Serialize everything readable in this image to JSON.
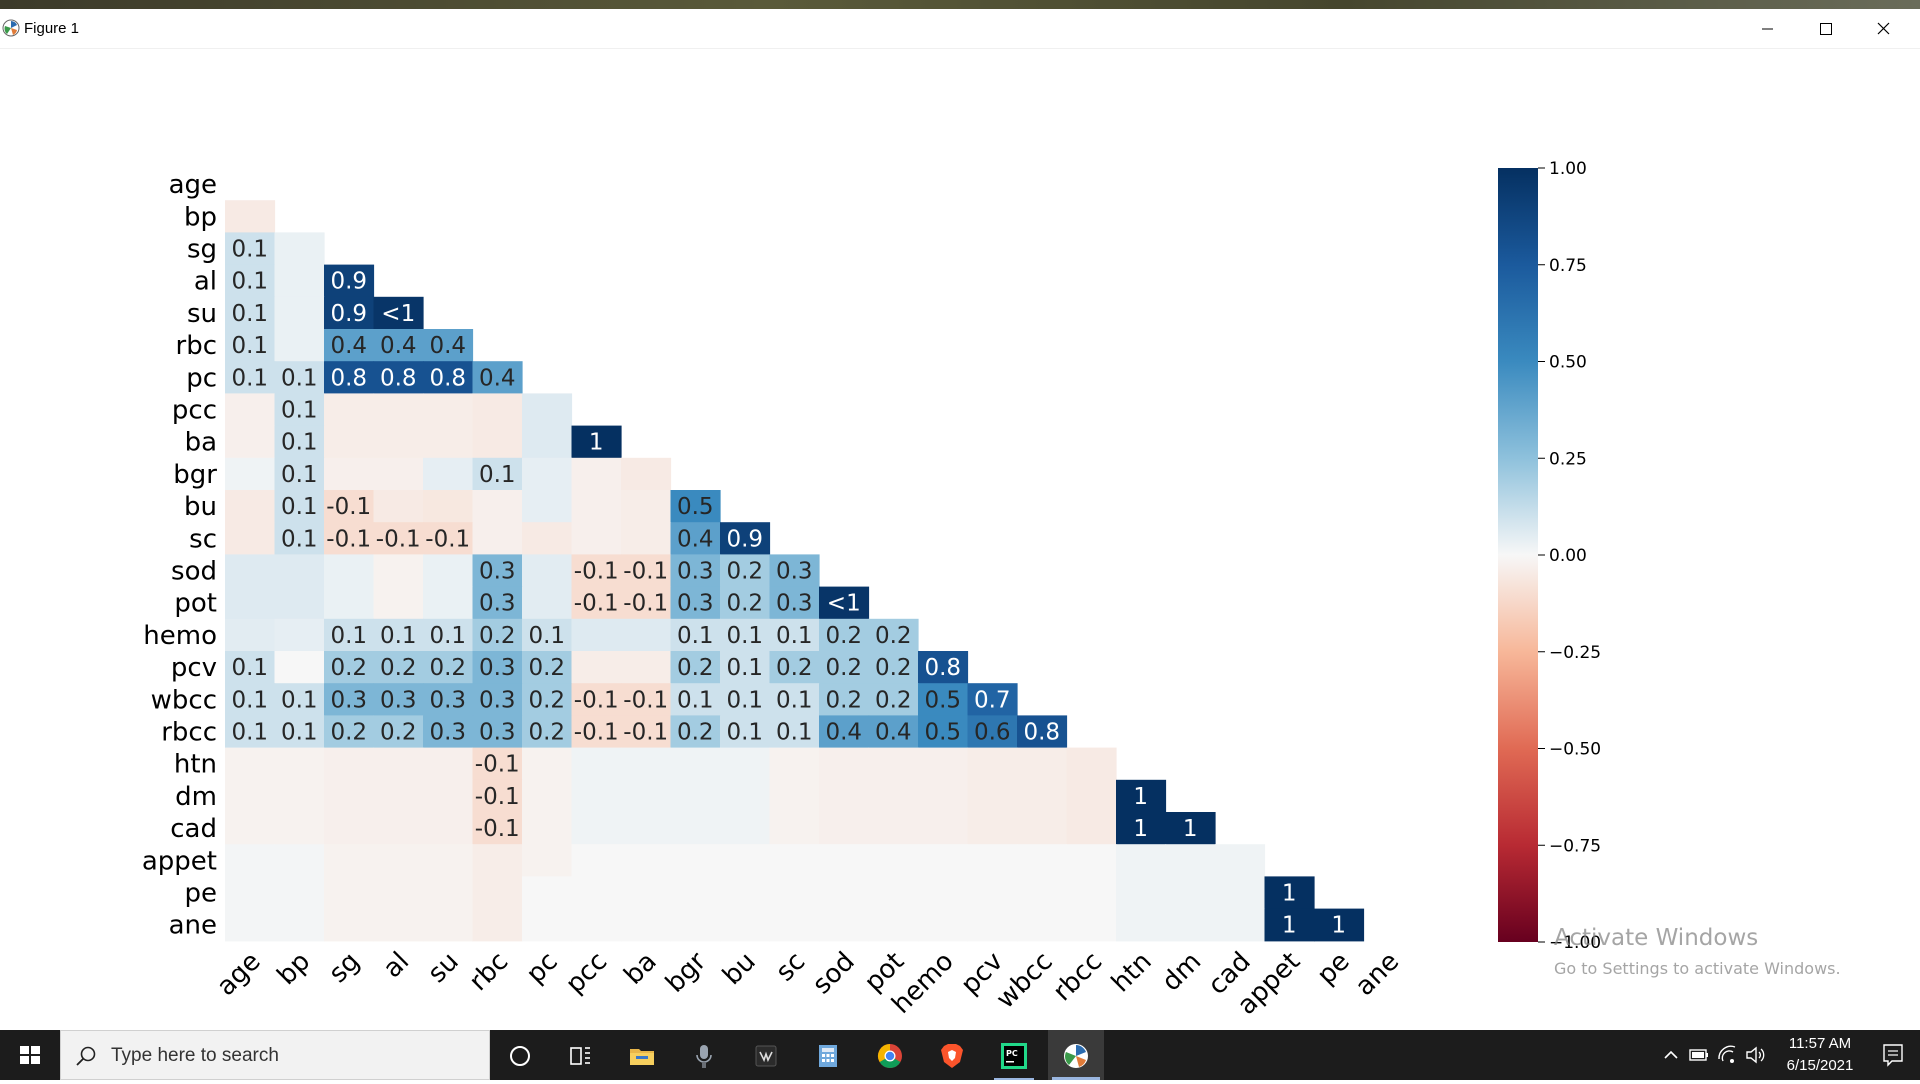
{
  "window": {
    "title": "Figure 1"
  },
  "watermark": {
    "line1": "Activate Windows",
    "line2": "Go to Settings to activate Windows."
  },
  "taskbar": {
    "search_placeholder": "Type here to search",
    "apps": [
      "cortana-icon",
      "task-view-icon",
      "file-explorer-icon",
      "microphone-app-icon",
      "terminal-app-icon",
      "calculator-icon",
      "chrome-icon",
      "brave-icon",
      "pycharm-icon",
      "matplotlib-figure-icon"
    ],
    "clock_time": "11:57 AM",
    "clock_date": "6/15/2021"
  },
  "chart_data": {
    "type": "heatmap",
    "title": "",
    "labels": [
      "age",
      "bp",
      "sg",
      "al",
      "su",
      "rbc",
      "pc",
      "pcc",
      "ba",
      "bgr",
      "bu",
      "sc",
      "sod",
      "pot",
      "hemo",
      "pcv",
      "wbcc",
      "rbcc",
      "htn",
      "dm",
      "cad",
      "appet",
      "pe",
      "ane"
    ],
    "annotations": [
      [
        "sg",
        "age",
        "0.1"
      ],
      [
        "al",
        "age",
        "0.1"
      ],
      [
        "al",
        "sg",
        "0.9"
      ],
      [
        "su",
        "age",
        "0.1"
      ],
      [
        "su",
        "sg",
        "0.9"
      ],
      [
        "su",
        "al",
        "<1"
      ],
      [
        "rbc",
        "age",
        "0.1"
      ],
      [
        "rbc",
        "sg",
        "0.4"
      ],
      [
        "rbc",
        "al",
        "0.4"
      ],
      [
        "rbc",
        "su",
        "0.4"
      ],
      [
        "pc",
        "age",
        "0.1"
      ],
      [
        "pc",
        "bp",
        "0.1"
      ],
      [
        "pc",
        "sg",
        "0.8"
      ],
      [
        "pc",
        "al",
        "0.8"
      ],
      [
        "pc",
        "su",
        "0.8"
      ],
      [
        "pc",
        "rbc",
        "0.4"
      ],
      [
        "pcc",
        "bp",
        "0.1"
      ],
      [
        "ba",
        "bp",
        "0.1"
      ],
      [
        "ba",
        "pcc",
        "1"
      ],
      [
        "bgr",
        "bp",
        "0.1"
      ],
      [
        "bgr",
        "rbc",
        "0.1"
      ],
      [
        "bu",
        "bp",
        "0.1"
      ],
      [
        "bu",
        "sg",
        "-0.1"
      ],
      [
        "bu",
        "bgr",
        "0.5"
      ],
      [
        "sc",
        "bp",
        "0.1"
      ],
      [
        "sc",
        "sg",
        "-0.1"
      ],
      [
        "sc",
        "al",
        "-0.1"
      ],
      [
        "sc",
        "su",
        "-0.1"
      ],
      [
        "sc",
        "bgr",
        "0.4"
      ],
      [
        "sc",
        "bu",
        "0.9"
      ],
      [
        "sod",
        "rbc",
        "0.3"
      ],
      [
        "sod",
        "pcc",
        "-0.1"
      ],
      [
        "sod",
        "ba",
        "-0.1"
      ],
      [
        "sod",
        "bgr",
        "0.3"
      ],
      [
        "sod",
        "bu",
        "0.2"
      ],
      [
        "sod",
        "sc",
        "0.3"
      ],
      [
        "pot",
        "rbc",
        "0.3"
      ],
      [
        "pot",
        "pcc",
        "-0.1"
      ],
      [
        "pot",
        "ba",
        "-0.1"
      ],
      [
        "pot",
        "bgr",
        "0.3"
      ],
      [
        "pot",
        "bu",
        "0.2"
      ],
      [
        "pot",
        "sc",
        "0.3"
      ],
      [
        "pot",
        "sod",
        "<1"
      ],
      [
        "hemo",
        "sg",
        "0.1"
      ],
      [
        "hemo",
        "al",
        "0.1"
      ],
      [
        "hemo",
        "su",
        "0.1"
      ],
      [
        "hemo",
        "rbc",
        "0.2"
      ],
      [
        "hemo",
        "pc",
        "0.1"
      ],
      [
        "hemo",
        "bgr",
        "0.1"
      ],
      [
        "hemo",
        "bu",
        "0.1"
      ],
      [
        "hemo",
        "sc",
        "0.1"
      ],
      [
        "hemo",
        "sod",
        "0.2"
      ],
      [
        "hemo",
        "pot",
        "0.2"
      ],
      [
        "pcv",
        "age",
        "0.1"
      ],
      [
        "pcv",
        "sg",
        "0.2"
      ],
      [
        "pcv",
        "al",
        "0.2"
      ],
      [
        "pcv",
        "su",
        "0.2"
      ],
      [
        "pcv",
        "rbc",
        "0.3"
      ],
      [
        "pcv",
        "pc",
        "0.2"
      ],
      [
        "pcv",
        "bgr",
        "0.2"
      ],
      [
        "pcv",
        "bu",
        "0.1"
      ],
      [
        "pcv",
        "sc",
        "0.2"
      ],
      [
        "pcv",
        "sod",
        "0.2"
      ],
      [
        "pcv",
        "pot",
        "0.2"
      ],
      [
        "pcv",
        "hemo",
        "0.8"
      ],
      [
        "wbcc",
        "age",
        "0.1"
      ],
      [
        "wbcc",
        "bp",
        "0.1"
      ],
      [
        "wbcc",
        "sg",
        "0.3"
      ],
      [
        "wbcc",
        "al",
        "0.3"
      ],
      [
        "wbcc",
        "su",
        "0.3"
      ],
      [
        "wbcc",
        "rbc",
        "0.3"
      ],
      [
        "wbcc",
        "pc",
        "0.2"
      ],
      [
        "wbcc",
        "pcc",
        "-0.1"
      ],
      [
        "wbcc",
        "ba",
        "-0.1"
      ],
      [
        "wbcc",
        "bgr",
        "0.1"
      ],
      [
        "wbcc",
        "bu",
        "0.1"
      ],
      [
        "wbcc",
        "sc",
        "0.1"
      ],
      [
        "wbcc",
        "sod",
        "0.2"
      ],
      [
        "wbcc",
        "pot",
        "0.2"
      ],
      [
        "wbcc",
        "hemo",
        "0.5"
      ],
      [
        "wbcc",
        "pcv",
        "0.7"
      ],
      [
        "rbcc",
        "age",
        "0.1"
      ],
      [
        "rbcc",
        "bp",
        "0.1"
      ],
      [
        "rbcc",
        "sg",
        "0.2"
      ],
      [
        "rbcc",
        "al",
        "0.2"
      ],
      [
        "rbcc",
        "su",
        "0.3"
      ],
      [
        "rbcc",
        "rbc",
        "0.3"
      ],
      [
        "rbcc",
        "pc",
        "0.2"
      ],
      [
        "rbcc",
        "pcc",
        "-0.1"
      ],
      [
        "rbcc",
        "ba",
        "-0.1"
      ],
      [
        "rbcc",
        "bgr",
        "0.2"
      ],
      [
        "rbcc",
        "bu",
        "0.1"
      ],
      [
        "rbcc",
        "sc",
        "0.1"
      ],
      [
        "rbcc",
        "sod",
        "0.4"
      ],
      [
        "rbcc",
        "pot",
        "0.4"
      ],
      [
        "rbcc",
        "hemo",
        "0.5"
      ],
      [
        "rbcc",
        "pcv",
        "0.6"
      ],
      [
        "rbcc",
        "wbcc",
        "0.8"
      ],
      [
        "htn",
        "rbc",
        "-0.1"
      ],
      [
        "dm",
        "rbc",
        "-0.1"
      ],
      [
        "dm",
        "htn",
        "1"
      ],
      [
        "cad",
        "rbc",
        "-0.1"
      ],
      [
        "cad",
        "htn",
        "1"
      ],
      [
        "cad",
        "dm",
        "1"
      ],
      [
        "pe",
        "appet",
        "1"
      ],
      [
        "ane",
        "appet",
        "1"
      ],
      [
        "ane",
        "pe",
        "1"
      ]
    ],
    "background_cells": [
      [
        "bp",
        "age",
        -0.05
      ],
      [
        "pcc",
        "age",
        -0.03
      ],
      [
        "ba",
        "age",
        -0.03
      ],
      [
        "bgr",
        "age",
        0.02
      ],
      [
        "bu",
        "age",
        -0.05
      ],
      [
        "sc",
        "age",
        -0.05
      ],
      [
        "sod",
        "age",
        0.06
      ],
      [
        "pot",
        "age",
        0.06
      ],
      [
        "hemo",
        "age",
        0.05
      ],
      [
        "htn",
        "age",
        -0.02
      ],
      [
        "dm",
        "age",
        -0.02
      ],
      [
        "cad",
        "age",
        -0.02
      ],
      [
        "appet",
        "age",
        0.01
      ],
      [
        "pe",
        "age",
        0.01
      ],
      [
        "ane",
        "age",
        0.01
      ],
      [
        "sg",
        "bp",
        0.03
      ],
      [
        "al",
        "bp",
        0.03
      ],
      [
        "su",
        "bp",
        0.03
      ],
      [
        "rbc",
        "bp",
        0.03
      ],
      [
        "sod",
        "bp",
        0.06
      ],
      [
        "pot",
        "bp",
        0.06
      ],
      [
        "hemo",
        "bp",
        0.04
      ],
      [
        "htn",
        "bp",
        -0.02
      ],
      [
        "dm",
        "bp",
        -0.02
      ],
      [
        "cad",
        "bp",
        -0.02
      ],
      [
        "appet",
        "bp",
        0.01
      ],
      [
        "pe",
        "bp",
        0.01
      ],
      [
        "ane",
        "bp",
        0.01
      ],
      [
        "pcc",
        "sg",
        -0.04
      ],
      [
        "ba",
        "sg",
        -0.04
      ],
      [
        "bgr",
        "sg",
        -0.03
      ],
      [
        "sod",
        "sg",
        0.03
      ],
      [
        "pot",
        "sg",
        0.03
      ],
      [
        "pcc",
        "al",
        -0.04
      ],
      [
        "ba",
        "al",
        -0.04
      ],
      [
        "bgr",
        "al",
        -0.03
      ],
      [
        "bu",
        "al",
        -0.05
      ],
      [
        "sod",
        "al",
        -0.02
      ],
      [
        "pot",
        "al",
        -0.02
      ],
      [
        "pcc",
        "su",
        -0.04
      ],
      [
        "ba",
        "su",
        -0.04
      ],
      [
        "bgr",
        "su",
        0.04
      ],
      [
        "bu",
        "su",
        -0.06
      ],
      [
        "sod",
        "su",
        0.03
      ],
      [
        "pot",
        "su",
        0.03
      ],
      [
        "pcc",
        "rbc",
        -0.05
      ],
      [
        "ba",
        "rbc",
        -0.05
      ],
      [
        "bu",
        "rbc",
        -0.03
      ],
      [
        "sc",
        "rbc",
        -0.03
      ],
      [
        "pcc",
        "pc",
        0.06
      ],
      [
        "ba",
        "pc",
        0.06
      ],
      [
        "bgr",
        "pc",
        0.04
      ],
      [
        "bu",
        "pc",
        0.04
      ],
      [
        "sc",
        "pc",
        -0.05
      ],
      [
        "sod",
        "pc",
        0.05
      ],
      [
        "pot",
        "pc",
        0.05
      ],
      [
        "bgr",
        "pcc",
        -0.03
      ],
      [
        "bu",
        "pcc",
        -0.03
      ],
      [
        "sc",
        "pcc",
        -0.03
      ],
      [
        "hemo",
        "pcc",
        0.06
      ],
      [
        "pcv",
        "pcc",
        -0.04
      ],
      [
        "bgr",
        "ba",
        -0.05
      ],
      [
        "bu",
        "ba",
        -0.04
      ],
      [
        "sc",
        "ba",
        -0.04
      ],
      [
        "hemo",
        "ba",
        0.06
      ],
      [
        "pcv",
        "ba",
        -0.04
      ],
      [
        "htn",
        "bgr",
        0.02
      ],
      [
        "dm",
        "bgr",
        0.02
      ],
      [
        "cad",
        "bgr",
        0.02
      ],
      [
        "htn",
        "bu",
        0.02
      ],
      [
        "dm",
        "bu",
        0.02
      ],
      [
        "cad",
        "bu",
        0.02
      ],
      [
        "rbcc",
        "rbcc",
        0.0
      ],
      [
        "htn",
        "sg",
        -0.03
      ],
      [
        "dm",
        "sg",
        -0.03
      ],
      [
        "cad",
        "sg",
        -0.03
      ],
      [
        "htn",
        "al",
        -0.03
      ],
      [
        "dm",
        "al",
        -0.03
      ],
      [
        "cad",
        "al",
        -0.03
      ],
      [
        "htn",
        "su",
        -0.03
      ],
      [
        "dm",
        "su",
        -0.03
      ],
      [
        "cad",
        "su",
        -0.03
      ],
      [
        "htn",
        "pc",
        -0.02
      ],
      [
        "dm",
        "pc",
        -0.02
      ],
      [
        "cad",
        "pc",
        -0.02
      ],
      [
        "htn",
        "pcc",
        0.02
      ],
      [
        "dm",
        "pcc",
        0.02
      ],
      [
        "cad",
        "pcc",
        0.02
      ],
      [
        "htn",
        "ba",
        0.02
      ],
      [
        "dm",
        "ba",
        0.02
      ],
      [
        "cad",
        "ba",
        0.02
      ],
      [
        "htn",
        "sc",
        -0.02
      ],
      [
        "dm",
        "sc",
        -0.02
      ],
      [
        "cad",
        "sc",
        -0.02
      ],
      [
        "htn",
        "sod",
        -0.03
      ],
      [
        "dm",
        "sod",
        -0.03
      ],
      [
        "cad",
        "sod",
        -0.03
      ],
      [
        "htn",
        "pot",
        -0.03
      ],
      [
        "dm",
        "pot",
        -0.03
      ],
      [
        "cad",
        "pot",
        -0.03
      ],
      [
        "htn",
        "hemo",
        -0.03
      ],
      [
        "dm",
        "hemo",
        -0.03
      ],
      [
        "cad",
        "hemo",
        -0.03
      ],
      [
        "htn",
        "pcv",
        -0.04
      ],
      [
        "dm",
        "pcv",
        -0.04
      ],
      [
        "cad",
        "pcv",
        -0.04
      ],
      [
        "htn",
        "wbcc",
        -0.04
      ],
      [
        "dm",
        "wbcc",
        -0.04
      ],
      [
        "cad",
        "wbcc",
        -0.04
      ],
      [
        "htn",
        "rbcc",
        -0.05
      ],
      [
        "dm",
        "rbcc",
        -0.05
      ],
      [
        "cad",
        "rbcc",
        -0.05
      ],
      [
        "appet",
        "sg",
        -0.02
      ],
      [
        "appet",
        "al",
        -0.02
      ],
      [
        "appet",
        "su",
        -0.02
      ],
      [
        "appet",
        "rbc",
        -0.04
      ],
      [
        "appet",
        "pc",
        -0.02
      ],
      [
        "pe",
        "rbc",
        -0.04
      ],
      [
        "ane",
        "rbc",
        -0.04
      ],
      [
        "pe",
        "sg",
        -0.02
      ],
      [
        "pe",
        "al",
        -0.02
      ],
      [
        "pe",
        "su",
        -0.02
      ],
      [
        "ane",
        "sg",
        -0.02
      ],
      [
        "ane",
        "al",
        -0.02
      ],
      [
        "ane",
        "su",
        -0.02
      ],
      [
        "appet",
        "htn",
        0.02
      ],
      [
        "appet",
        "dm",
        0.02
      ],
      [
        "appet",
        "cad",
        0.02
      ],
      [
        "pe",
        "htn",
        0.02
      ],
      [
        "pe",
        "dm",
        0.02
      ],
      [
        "pe",
        "cad",
        0.02
      ],
      [
        "ane",
        "htn",
        0.02
      ],
      [
        "ane",
        "dm",
        0.02
      ],
      [
        "ane",
        "cad",
        0.02
      ]
    ],
    "colorbar": {
      "vmin": -1.0,
      "vmax": 1.0,
      "ticks": [
        "1.00",
        "0.75",
        "0.50",
        "0.25",
        "0.00",
        "−0.25",
        "−0.50",
        "−0.75",
        "−1.00"
      ],
      "colormap": "RdBu"
    },
    "colors": {
      "positive_end": "#053061",
      "negative_end": "#67001f",
      "neutral": "#f7f7f7"
    }
  }
}
